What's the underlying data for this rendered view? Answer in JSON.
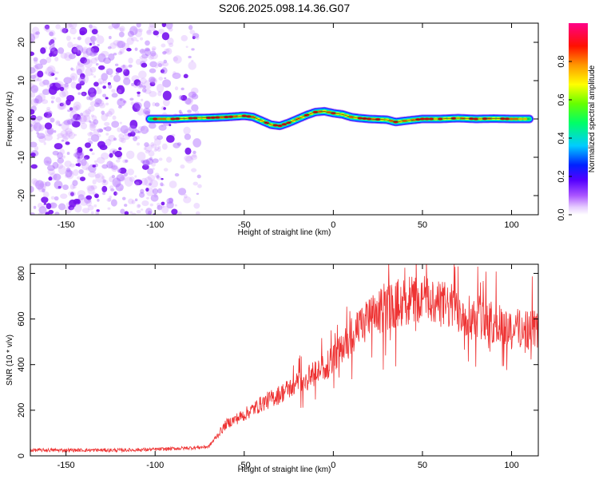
{
  "title": "S206.2025.098.14.36.G07",
  "chart_data": [
    {
      "type": "heatmap",
      "xlabel": "Height of straight line (km)",
      "ylabel": "Frequency (Hz)",
      "xlim": [
        -170,
        115
      ],
      "ylim": [
        -25,
        25
      ],
      "xticks": [
        -150,
        -100,
        -50,
        0,
        50,
        100
      ],
      "yticks": [
        -20,
        -10,
        0,
        10,
        20
      ],
      "colorbar": {
        "label": "Normalized spectral amplitude",
        "range": [
          0,
          1
        ],
        "ticks": [
          0.0,
          0.2,
          0.4,
          0.6,
          0.8
        ],
        "colors": [
          "#ffffff",
          "#cc99ff",
          "#8800ff",
          "#0000ff",
          "#00ccff",
          "#00ff66",
          "#88ff00",
          "#ffff00",
          "#ff8800",
          "#ff0000",
          "#ff0088"
        ]
      },
      "ridge": {
        "description_values": "peak frequency (Hz) of the dominant signal vs height (km)",
        "x": [
          -103,
          -90,
          -80,
          -70,
          -60,
          -50,
          -45,
          -40,
          -35,
          -30,
          -25,
          -20,
          -15,
          -10,
          -5,
          0,
          5,
          10,
          15,
          20,
          30,
          35,
          40,
          50,
          60,
          70,
          80,
          90,
          100,
          110
        ],
        "freq": [
          0,
          0,
          0.2,
          0.3,
          0.5,
          0.8,
          0.5,
          -0.5,
          -1.5,
          -1.8,
          -1.0,
          0,
          1.0,
          1.8,
          2.0,
          1.5,
          1.2,
          0.5,
          0.2,
          0,
          -0.2,
          -0.8,
          -0.5,
          0,
          0,
          0.2,
          0,
          0.1,
          0,
          0
        ]
      },
      "noise_region": {
        "xlim": [
          -170,
          -75
        ],
        "ylim": [
          -25,
          25
        ]
      }
    },
    {
      "type": "line",
      "xlabel": "Height of straight line (km)",
      "ylabel": "SNR (10 * v/v)",
      "xlim": [
        -170,
        115
      ],
      "ylim": [
        0,
        840
      ],
      "xticks": [
        -150,
        -100,
        -50,
        0,
        50,
        100
      ],
      "yticks": [
        0,
        200,
        400,
        600,
        800
      ],
      "color": "#ee3333",
      "trend": {
        "x": [
          -170,
          -120,
          -100,
          -80,
          -70,
          -65,
          -60,
          -50,
          -40,
          -30,
          -20,
          -10,
          0,
          10,
          20,
          30,
          40,
          50,
          60,
          70,
          80,
          90,
          100,
          115
        ],
        "y": [
          25,
          25,
          28,
          35,
          40,
          90,
          140,
          180,
          230,
          270,
          320,
          360,
          420,
          520,
          600,
          650,
          680,
          690,
          670,
          640,
          610,
          580,
          560,
          560
        ]
      },
      "peak_max": 840
    }
  ]
}
